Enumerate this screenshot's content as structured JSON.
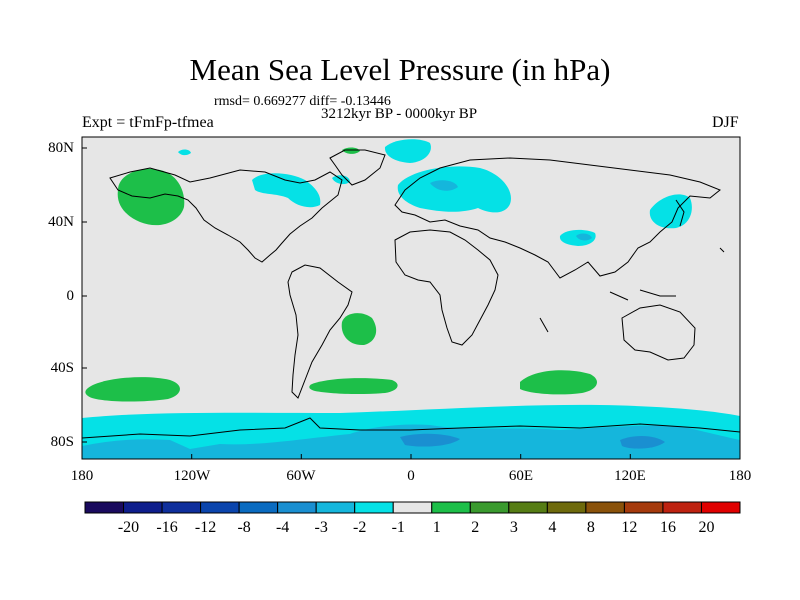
{
  "title": "Mean Sea Level Pressure (in hPa)",
  "stats": "rmsd= 0.669277 diff= -0.13446",
  "period": "3212kyr BP - 0000kyr BP",
  "experiment": "Expt = tFmFp-tfmea",
  "season": "DJF",
  "lat_ticks": [
    "80N",
    "40N",
    "0",
    "40S",
    "80S"
  ],
  "lon_ticks": [
    "180",
    "120W",
    "60W",
    "0",
    "60E",
    "120E",
    "180"
  ],
  "colorbar": {
    "labels": [
      "-20",
      "-16",
      "-12",
      "-8",
      "-4",
      "-3",
      "-2",
      "-1",
      "1",
      "2",
      "3",
      "4",
      "8",
      "12",
      "16",
      "20"
    ],
    "colors": [
      "#1a0a5e",
      "#0e1e8c",
      "#0f2f9c",
      "#0b45ad",
      "#0a6bc0",
      "#1a8fd1",
      "#15b6dc",
      "#05e1e6",
      "#e6e6e6",
      "#1dbf49",
      "#3a9a2e",
      "#567d14",
      "#6e6a0c",
      "#8a520a",
      "#a53a0c",
      "#be2210",
      "#e00000"
    ]
  },
  "colors": {
    "land_ocean_neutral": "#e6e6e6",
    "neg_1_2": "#05e1e6",
    "neg_2_3": "#15b6dc",
    "neg_3_4": "#1a8fd1",
    "pos_1_2": "#1dbf49"
  }
}
